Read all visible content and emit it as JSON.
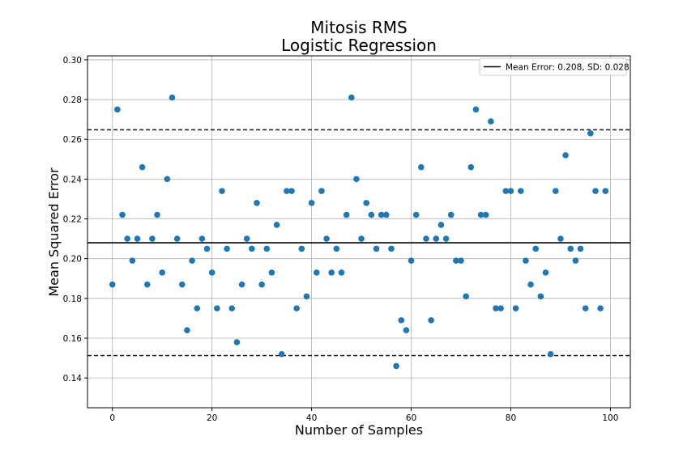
{
  "chart_data": {
    "type": "scatter",
    "title_line1": "Mitosis RMS",
    "title_line2": "Logistic Regression",
    "xlabel": "Number of Samples",
    "ylabel": "Mean Squared Error",
    "xlim": [
      -5,
      104
    ],
    "ylim": [
      0.125,
      0.302
    ],
    "xticks": [
      0,
      20,
      40,
      60,
      80,
      100
    ],
    "xtick_labels": [
      "0",
      "20",
      "40",
      "60",
      "80",
      "100"
    ],
    "yticks": [
      0.14,
      0.16,
      0.18,
      0.2,
      0.22,
      0.24,
      0.26,
      0.28,
      0.3
    ],
    "ytick_labels": [
      "0.14",
      "0.16",
      "0.18",
      "0.20",
      "0.22",
      "0.24",
      "0.26",
      "0.28",
      "0.30"
    ],
    "grid": true,
    "legend_position": "top-right",
    "legend_label": "Mean Error: 0.208, SD: 0.028",
    "mean": 0.208,
    "upper_bound": 0.2648,
    "lower_bound": 0.1512,
    "marker_color": "#1f77b4",
    "x": [
      0,
      1,
      2,
      3,
      4,
      5,
      6,
      7,
      8,
      9,
      10,
      11,
      12,
      13,
      14,
      15,
      16,
      17,
      18,
      19,
      20,
      21,
      22,
      23,
      24,
      25,
      26,
      27,
      28,
      29,
      30,
      31,
      32,
      33,
      34,
      35,
      36,
      37,
      38,
      39,
      40,
      41,
      42,
      43,
      44,
      45,
      46,
      47,
      48,
      49,
      50,
      51,
      52,
      53,
      54,
      55,
      56,
      57,
      58,
      59,
      60,
      61,
      62,
      63,
      64,
      65,
      66,
      67,
      68,
      69,
      70,
      71,
      72,
      73,
      74,
      75,
      76,
      77,
      78,
      79,
      80,
      81,
      82,
      83,
      84,
      85,
      86,
      87,
      88,
      89,
      90,
      91,
      92,
      93,
      94,
      95,
      96,
      97,
      98,
      99
    ],
    "y": [
      0.187,
      0.275,
      0.222,
      0.21,
      0.199,
      0.21,
      0.246,
      0.187,
      0.21,
      0.222,
      0.193,
      0.24,
      0.281,
      0.21,
      0.187,
      0.164,
      0.199,
      0.175,
      0.21,
      0.205,
      0.193,
      0.175,
      0.234,
      0.205,
      0.175,
      0.158,
      0.187,
      0.21,
      0.205,
      0.228,
      0.187,
      0.205,
      0.193,
      0.217,
      0.152,
      0.234,
      0.234,
      0.175,
      0.205,
      0.181,
      0.228,
      0.193,
      0.234,
      0.21,
      0.193,
      0.205,
      0.193,
      0.222,
      0.281,
      0.24,
      0.21,
      0.228,
      0.222,
      0.205,
      0.222,
      0.222,
      0.205,
      0.146,
      0.169,
      0.164,
      0.199,
      0.222,
      0.246,
      0.21,
      0.169,
      0.21,
      0.217,
      0.21,
      0.222,
      0.199,
      0.199,
      0.181,
      0.246,
      0.275,
      0.222,
      0.222,
      0.269,
      0.175,
      0.175,
      0.234,
      0.234,
      0.175,
      0.234,
      0.199,
      0.187,
      0.205,
      0.181,
      0.193,
      0.152,
      0.234,
      0.21,
      0.252,
      0.205,
      0.199,
      0.205,
      0.175,
      0.263,
      0.234,
      0.175,
      0.234
    ]
  }
}
